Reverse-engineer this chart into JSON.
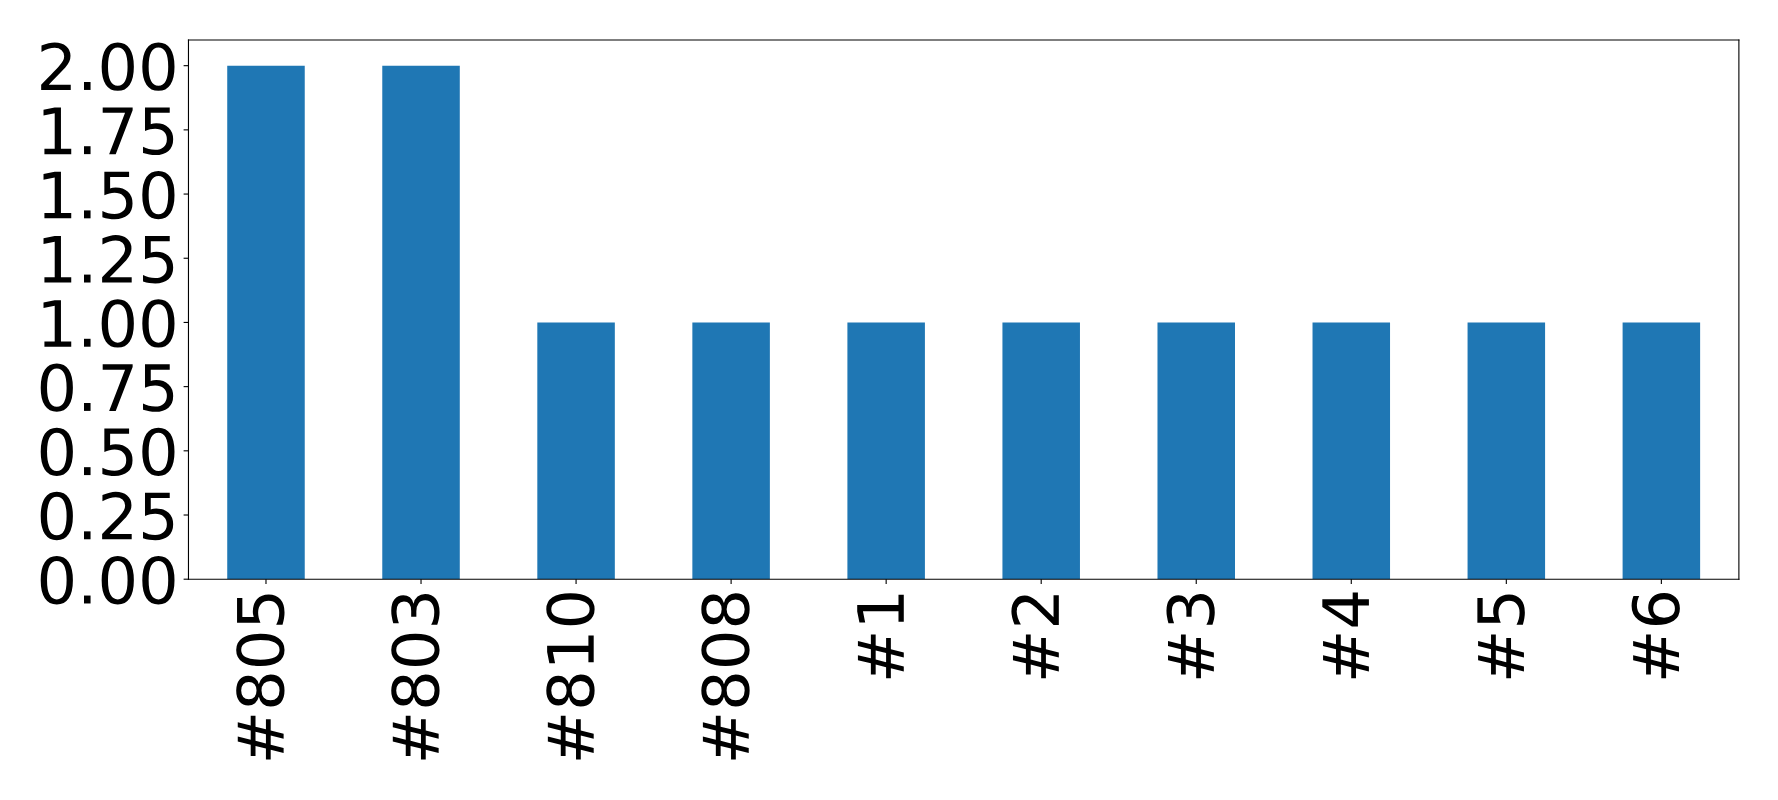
{
  "chart_data": {
    "type": "bar",
    "categories": [
      "#805",
      "#803",
      "#810",
      "#808",
      "#1",
      "#2",
      "#3",
      "#4",
      "#5",
      "#6"
    ],
    "values": [
      2,
      2,
      1,
      1,
      1,
      1,
      1,
      1,
      1,
      1
    ],
    "color": "#1f77b4",
    "ylim": [
      0,
      2.1
    ],
    "yticks": [
      {
        "value": 0,
        "label": "0.00"
      },
      {
        "value": 0.25,
        "label": "0.25"
      },
      {
        "value": 0.5,
        "label": "0.50"
      },
      {
        "value": 0.75,
        "label": "0.75"
      },
      {
        "value": 1,
        "label": "1.00"
      },
      {
        "value": 1.25,
        "label": "1.25"
      },
      {
        "value": 1.5,
        "label": "1.50"
      },
      {
        "value": 1.75,
        "label": "1.75"
      },
      {
        "value": 2,
        "label": "2.00"
      }
    ],
    "grid": false
  }
}
